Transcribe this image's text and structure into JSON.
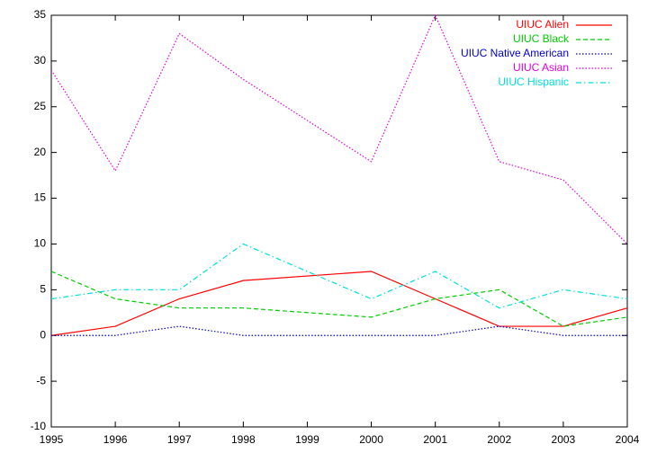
{
  "chart_data": {
    "type": "line",
    "x": [
      1995,
      1996,
      1997,
      1998,
      2000,
      2001,
      2002,
      2003,
      2004
    ],
    "series": [
      {
        "name": "UIUC Alien",
        "color": "#ff0000",
        "dash": "solid",
        "values": [
          0,
          1,
          4,
          6,
          7,
          4,
          1,
          1,
          3
        ]
      },
      {
        "name": "UIUC Black",
        "color": "#00cc00",
        "dash": "dashed",
        "values": [
          7,
          4,
          3,
          3,
          2,
          4,
          5,
          1,
          2
        ]
      },
      {
        "name": "UIUC Native American",
        "color": "#0000cc",
        "dash": "dotted",
        "values": [
          0,
          0,
          1,
          0,
          0,
          0,
          1,
          0,
          0
        ]
      },
      {
        "name": "UIUC Asian",
        "color": "#dd00dd",
        "dash": "dotted",
        "values": [
          29,
          18,
          33,
          28,
          19,
          35,
          19,
          17,
          10
        ]
      },
      {
        "name": "UIUC Hispanic",
        "color": "#00dddd",
        "dash": "dashdot",
        "values": [
          4,
          5,
          5,
          10,
          4,
          7,
          3,
          5,
          4
        ]
      }
    ],
    "xlim": [
      1995,
      2004
    ],
    "xticks": [
      1995,
      1996,
      1997,
      1998,
      1999,
      2000,
      2001,
      2002,
      2003,
      2004
    ],
    "ylim": [
      -10,
      35
    ],
    "yticks": [
      -10,
      -5,
      0,
      5,
      10,
      15,
      20,
      25,
      30,
      35
    ],
    "legend": "top-right"
  }
}
